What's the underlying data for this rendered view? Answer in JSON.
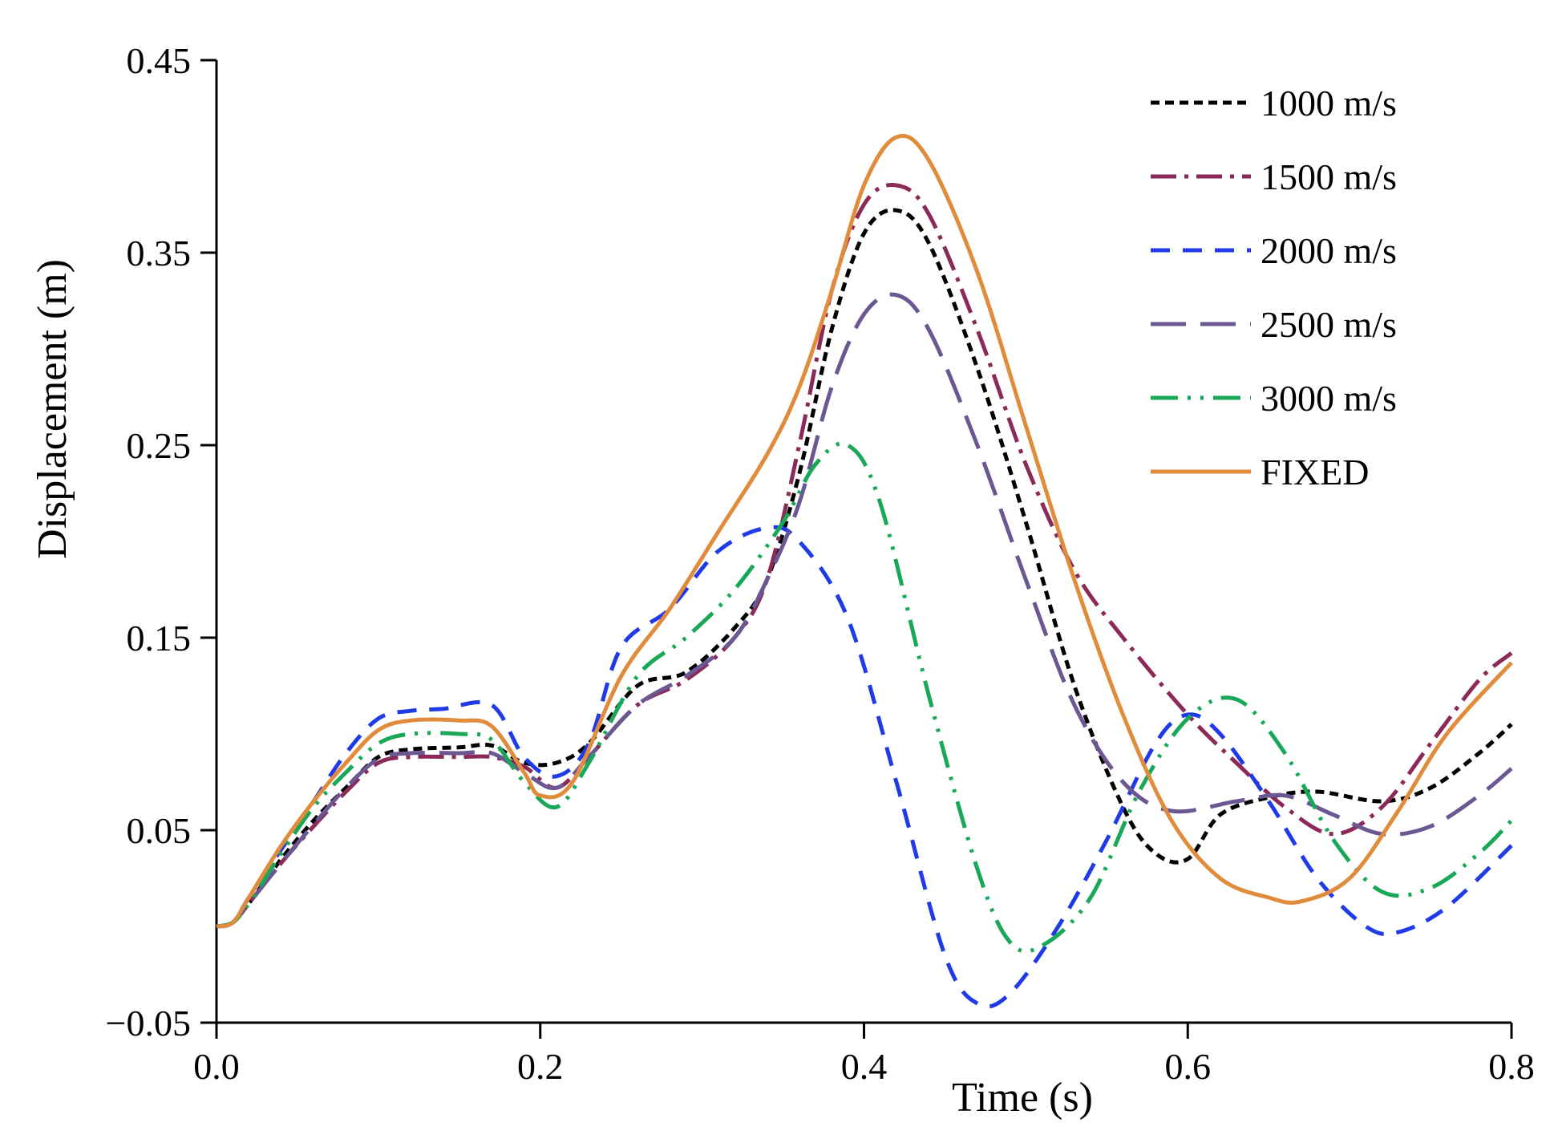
{
  "chart_data": {
    "type": "line",
    "title": "",
    "xlabel": "Time (s)",
    "ylabel": "Displacement (m)",
    "xlim": [
      0.0,
      0.8
    ],
    "ylim": [
      -0.05,
      0.45
    ],
    "xticks": [
      0.0,
      0.2,
      0.4,
      0.6,
      0.8
    ],
    "xtick_labels": [
      "0.0",
      "0.2",
      "0.4",
      "0.6",
      "0.8"
    ],
    "yticks": [
      -0.05,
      0.05,
      0.15,
      0.25,
      0.35,
      0.45
    ],
    "ytick_labels": [
      "−0.05",
      "0.05",
      "0.15",
      "0.25",
      "0.35",
      "0.45"
    ],
    "grid": false,
    "legend_position": "top-right",
    "series": [
      {
        "name": "1000 m/s",
        "color": "#000000",
        "dash": "short-dash",
        "points": [
          [
            0,
            0
          ],
          [
            0.01,
            0.002
          ],
          [
            0.02,
            0.012
          ],
          [
            0.04,
            0.035
          ],
          [
            0.06,
            0.055
          ],
          [
            0.08,
            0.072
          ],
          [
            0.1,
            0.088
          ],
          [
            0.12,
            0.092
          ],
          [
            0.15,
            0.093
          ],
          [
            0.17,
            0.094
          ],
          [
            0.19,
            0.085
          ],
          [
            0.21,
            0.085
          ],
          [
            0.23,
            0.095
          ],
          [
            0.26,
            0.125
          ],
          [
            0.29,
            0.132
          ],
          [
            0.32,
            0.155
          ],
          [
            0.34,
            0.18
          ],
          [
            0.36,
            0.235
          ],
          [
            0.38,
            0.31
          ],
          [
            0.4,
            0.36
          ],
          [
            0.42,
            0.372
          ],
          [
            0.44,
            0.355
          ],
          [
            0.47,
            0.29
          ],
          [
            0.5,
            0.21
          ],
          [
            0.53,
            0.125
          ],
          [
            0.56,
            0.062
          ],
          [
            0.58,
            0.038
          ],
          [
            0.6,
            0.035
          ],
          [
            0.62,
            0.058
          ],
          [
            0.65,
            0.067
          ],
          [
            0.68,
            0.07
          ],
          [
            0.72,
            0.065
          ],
          [
            0.75,
            0.072
          ],
          [
            0.78,
            0.09
          ],
          [
            0.8,
            0.105
          ]
        ]
      },
      {
        "name": "1500 m/s",
        "color": "#8B2A58",
        "dash": "dash-dot",
        "points": [
          [
            0,
            0
          ],
          [
            0.01,
            0.002
          ],
          [
            0.02,
            0.012
          ],
          [
            0.04,
            0.033
          ],
          [
            0.06,
            0.052
          ],
          [
            0.08,
            0.07
          ],
          [
            0.1,
            0.085
          ],
          [
            0.12,
            0.088
          ],
          [
            0.15,
            0.088
          ],
          [
            0.17,
            0.088
          ],
          [
            0.19,
            0.083
          ],
          [
            0.21,
            0.072
          ],
          [
            0.23,
            0.088
          ],
          [
            0.26,
            0.115
          ],
          [
            0.29,
            0.128
          ],
          [
            0.32,
            0.15
          ],
          [
            0.34,
            0.18
          ],
          [
            0.36,
            0.25
          ],
          [
            0.38,
            0.33
          ],
          [
            0.4,
            0.375
          ],
          [
            0.42,
            0.385
          ],
          [
            0.44,
            0.37
          ],
          [
            0.47,
            0.31
          ],
          [
            0.5,
            0.24
          ],
          [
            0.53,
            0.185
          ],
          [
            0.56,
            0.15
          ],
          [
            0.6,
            0.11
          ],
          [
            0.63,
            0.085
          ],
          [
            0.66,
            0.062
          ],
          [
            0.69,
            0.048
          ],
          [
            0.72,
            0.062
          ],
          [
            0.75,
            0.095
          ],
          [
            0.78,
            0.128
          ],
          [
            0.8,
            0.142
          ]
        ]
      },
      {
        "name": "2000 m/s",
        "color": "#1F3BE8",
        "dash": "dash",
        "points": [
          [
            0,
            0
          ],
          [
            0.01,
            0.002
          ],
          [
            0.02,
            0.015
          ],
          [
            0.04,
            0.04
          ],
          [
            0.06,
            0.065
          ],
          [
            0.08,
            0.09
          ],
          [
            0.1,
            0.108
          ],
          [
            0.12,
            0.112
          ],
          [
            0.14,
            0.113
          ],
          [
            0.17,
            0.115
          ],
          [
            0.19,
            0.088
          ],
          [
            0.21,
            0.078
          ],
          [
            0.23,
            0.095
          ],
          [
            0.25,
            0.145
          ],
          [
            0.28,
            0.165
          ],
          [
            0.31,
            0.195
          ],
          [
            0.34,
            0.207
          ],
          [
            0.36,
            0.2
          ],
          [
            0.39,
            0.16
          ],
          [
            0.42,
            0.075
          ],
          [
            0.45,
            -0.015
          ],
          [
            0.47,
            -0.04
          ],
          [
            0.49,
            -0.035
          ],
          [
            0.52,
            0.0
          ],
          [
            0.55,
            0.045
          ],
          [
            0.58,
            0.095
          ],
          [
            0.6,
            0.11
          ],
          [
            0.62,
            0.1
          ],
          [
            0.65,
            0.065
          ],
          [
            0.68,
            0.025
          ],
          [
            0.71,
            0.0
          ],
          [
            0.73,
            -0.003
          ],
          [
            0.76,
            0.01
          ],
          [
            0.8,
            0.042
          ]
        ]
      },
      {
        "name": "2500 m/s",
        "color": "#6B5893",
        "dash": "long-dash",
        "points": [
          [
            0,
            0
          ],
          [
            0.01,
            0.002
          ],
          [
            0.02,
            0.012
          ],
          [
            0.04,
            0.033
          ],
          [
            0.06,
            0.053
          ],
          [
            0.08,
            0.072
          ],
          [
            0.1,
            0.087
          ],
          [
            0.12,
            0.09
          ],
          [
            0.15,
            0.09
          ],
          [
            0.17,
            0.09
          ],
          [
            0.19,
            0.08
          ],
          [
            0.21,
            0.072
          ],
          [
            0.23,
            0.088
          ],
          [
            0.26,
            0.115
          ],
          [
            0.29,
            0.13
          ],
          [
            0.32,
            0.15
          ],
          [
            0.34,
            0.18
          ],
          [
            0.36,
            0.22
          ],
          [
            0.38,
            0.28
          ],
          [
            0.4,
            0.318
          ],
          [
            0.42,
            0.328
          ],
          [
            0.44,
            0.31
          ],
          [
            0.47,
            0.25
          ],
          [
            0.5,
            0.18
          ],
          [
            0.53,
            0.115
          ],
          [
            0.56,
            0.075
          ],
          [
            0.59,
            0.06
          ],
          [
            0.63,
            0.065
          ],
          [
            0.66,
            0.068
          ],
          [
            0.69,
            0.058
          ],
          [
            0.72,
            0.048
          ],
          [
            0.75,
            0.052
          ],
          [
            0.78,
            0.068
          ],
          [
            0.8,
            0.082
          ]
        ]
      },
      {
        "name": "3000 m/s",
        "color": "#19A857",
        "dash": "dash-dot-dot",
        "points": [
          [
            0,
            0
          ],
          [
            0.01,
            0.002
          ],
          [
            0.02,
            0.012
          ],
          [
            0.04,
            0.038
          ],
          [
            0.06,
            0.062
          ],
          [
            0.08,
            0.08
          ],
          [
            0.1,
            0.095
          ],
          [
            0.12,
            0.1
          ],
          [
            0.15,
            0.1
          ],
          [
            0.17,
            0.097
          ],
          [
            0.19,
            0.075
          ],
          [
            0.21,
            0.062
          ],
          [
            0.23,
            0.085
          ],
          [
            0.26,
            0.13
          ],
          [
            0.29,
            0.15
          ],
          [
            0.32,
            0.175
          ],
          [
            0.35,
            0.21
          ],
          [
            0.37,
            0.24
          ],
          [
            0.39,
            0.25
          ],
          [
            0.41,
            0.22
          ],
          [
            0.44,
            0.12
          ],
          [
            0.47,
            0.03
          ],
          [
            0.49,
            -0.008
          ],
          [
            0.51,
            -0.01
          ],
          [
            0.54,
            0.015
          ],
          [
            0.57,
            0.07
          ],
          [
            0.6,
            0.108
          ],
          [
            0.63,
            0.118
          ],
          [
            0.66,
            0.09
          ],
          [
            0.69,
            0.045
          ],
          [
            0.72,
            0.018
          ],
          [
            0.75,
            0.02
          ],
          [
            0.78,
            0.038
          ],
          [
            0.8,
            0.055
          ]
        ]
      },
      {
        "name": "FIXED",
        "color": "#E08C3C",
        "dash": "solid",
        "points": [
          [
            0,
            0
          ],
          [
            0.01,
            0.002
          ],
          [
            0.02,
            0.015
          ],
          [
            0.04,
            0.042
          ],
          [
            0.06,
            0.065
          ],
          [
            0.08,
            0.085
          ],
          [
            0.1,
            0.102
          ],
          [
            0.12,
            0.107
          ],
          [
            0.15,
            0.107
          ],
          [
            0.17,
            0.104
          ],
          [
            0.19,
            0.08
          ],
          [
            0.2,
            0.068
          ],
          [
            0.22,
            0.075
          ],
          [
            0.25,
            0.13
          ],
          [
            0.28,
            0.165
          ],
          [
            0.31,
            0.205
          ],
          [
            0.34,
            0.245
          ],
          [
            0.36,
            0.28
          ],
          [
            0.38,
            0.33
          ],
          [
            0.4,
            0.385
          ],
          [
            0.42,
            0.41
          ],
          [
            0.44,
            0.398
          ],
          [
            0.47,
            0.34
          ],
          [
            0.5,
            0.26
          ],
          [
            0.53,
            0.18
          ],
          [
            0.56,
            0.11
          ],
          [
            0.59,
            0.055
          ],
          [
            0.62,
            0.025
          ],
          [
            0.65,
            0.015
          ],
          [
            0.67,
            0.013
          ],
          [
            0.7,
            0.025
          ],
          [
            0.73,
            0.06
          ],
          [
            0.76,
            0.1
          ],
          [
            0.8,
            0.137
          ]
        ]
      }
    ]
  }
}
